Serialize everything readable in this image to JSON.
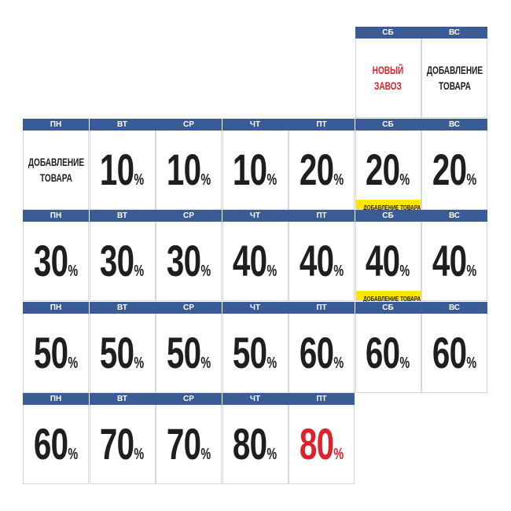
{
  "colors": {
    "header": "#3b5b97",
    "text": "#1e1e1e",
    "accent_red": "#e0202a",
    "badge": "#ffe600"
  },
  "weeks": [
    [
      null,
      null,
      null,
      null,
      null,
      {
        "day": "СБ",
        "note": [
          "НОВЫЙ",
          "ЗАВОЗ"
        ],
        "red": true
      },
      {
        "day": "ВС",
        "note": [
          "ДОБАВЛЕНИЕ",
          "ТОВАРА"
        ]
      }
    ],
    [
      {
        "day": "ПН",
        "note": [
          "ДОБАВЛЕНИЕ",
          "ТОВАРА"
        ]
      },
      {
        "day": "ВТ",
        "value": "10",
        "unit": "%"
      },
      {
        "day": "СР",
        "value": "10",
        "unit": "%"
      },
      {
        "day": "ЧТ",
        "value": "10",
        "unit": "%"
      },
      {
        "day": "ПТ",
        "value": "20",
        "unit": "%"
      },
      {
        "day": "СБ",
        "value": "20",
        "unit": "%",
        "badge": "ДОБАВЛЕНИЕ ТОВАРА"
      },
      {
        "day": "ВС",
        "value": "20",
        "unit": "%"
      }
    ],
    [
      {
        "day": "ПН",
        "value": "30",
        "unit": "%"
      },
      {
        "day": "ВТ",
        "value": "30",
        "unit": "%"
      },
      {
        "day": "СР",
        "value": "30",
        "unit": "%"
      },
      {
        "day": "ЧТ",
        "value": "40",
        "unit": "%"
      },
      {
        "day": "ПТ",
        "value": "40",
        "unit": "%"
      },
      {
        "day": "СБ",
        "value": "40",
        "unit": "%",
        "badge": "ДОБАВЛЕНИЕ ТОВАРА"
      },
      {
        "day": "ВС",
        "value": "40",
        "unit": "%"
      }
    ],
    [
      {
        "day": "ПН",
        "value": "50",
        "unit": "%"
      },
      {
        "day": "ВТ",
        "value": "50",
        "unit": "%"
      },
      {
        "day": "СР",
        "value": "50",
        "unit": "%"
      },
      {
        "day": "ЧТ",
        "value": "50",
        "unit": "%"
      },
      {
        "day": "ПТ",
        "value": "60",
        "unit": "%"
      },
      {
        "day": "СБ",
        "value": "60",
        "unit": "%"
      },
      {
        "day": "ВС",
        "value": "60",
        "unit": "%"
      }
    ],
    [
      {
        "day": "ПН",
        "value": "60",
        "unit": "%"
      },
      {
        "day": "ВТ",
        "value": "70",
        "unit": "%"
      },
      {
        "day": "СР",
        "value": "70",
        "unit": "%"
      },
      {
        "day": "ЧТ",
        "value": "80",
        "unit": "%"
      },
      {
        "day": "ПТ",
        "value": "80",
        "unit": "%",
        "red": true
      },
      null,
      null
    ]
  ]
}
